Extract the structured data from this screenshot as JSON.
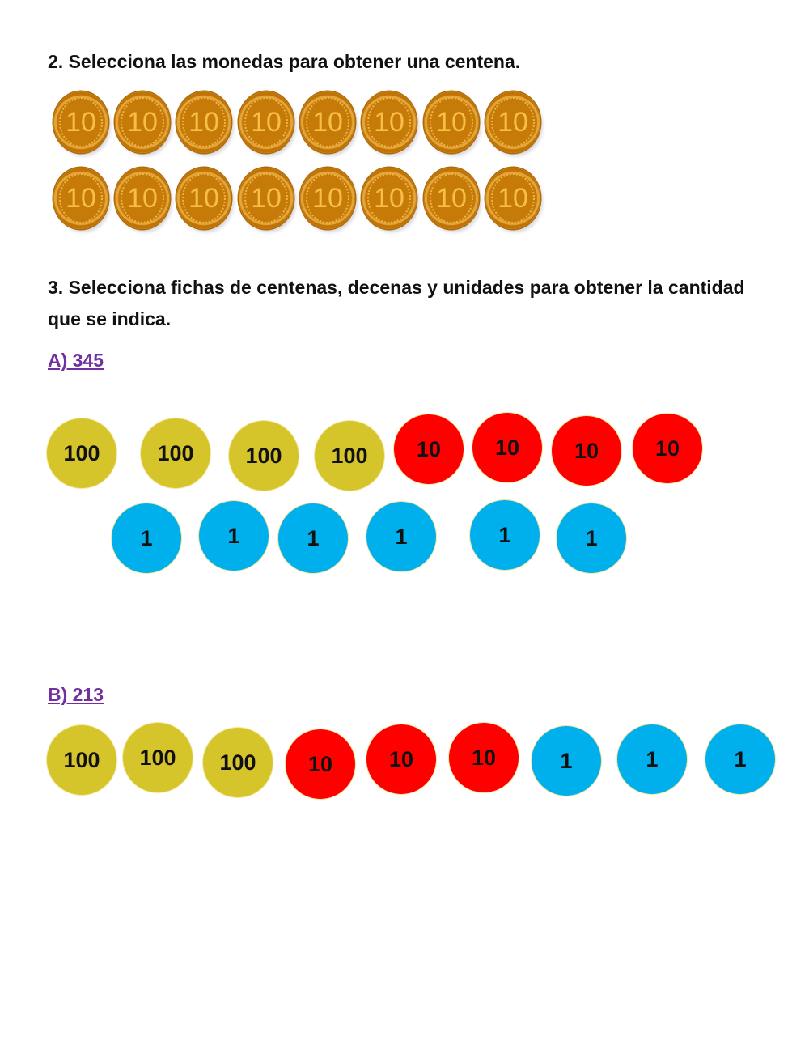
{
  "q2": {
    "title": "2. Selecciona las monedas para obtener una centena.",
    "coin_label": "10",
    "coin_count": 16
  },
  "q3": {
    "title": "3. Selecciona fichas de centenas, decenas y unidades para obtener la cantidad que se indica.",
    "a": {
      "label": "A) 345",
      "hundreds": "100",
      "tens": "10",
      "units": "1"
    },
    "b": {
      "label": "B) 213",
      "hundreds": "100",
      "tens": "10",
      "units": "1"
    }
  },
  "colors": {
    "hundreds": "#d6c52a",
    "tens": "#fe0000",
    "units": "#00b0ec",
    "subheading": "#7030a0"
  }
}
